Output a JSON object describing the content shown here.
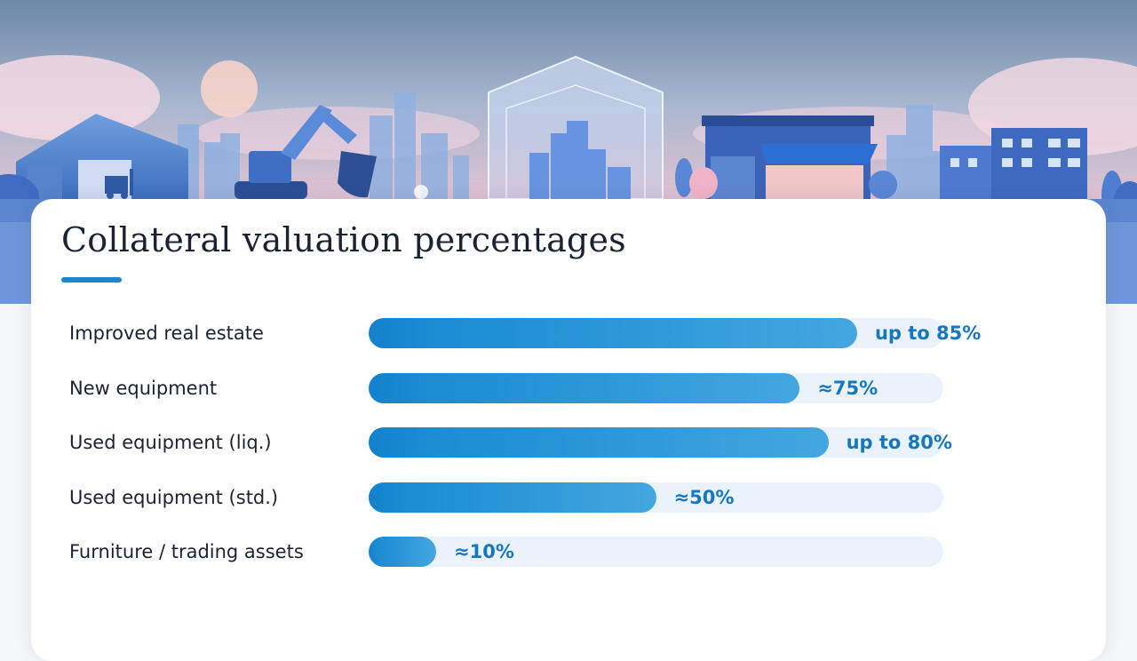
{
  "page": {
    "title": "Collateral valuation percentages"
  },
  "colors": {
    "accent": "#1a86cf",
    "bar": "#1b88d0",
    "track": "#eaf3fb",
    "value_text": "#1577bf",
    "title_text": "#1b2333"
  },
  "scene": {
    "depicts": [
      "warehouse-icon",
      "forklift-icon",
      "excavator-icon",
      "city-skyline-icon",
      "shield-icon",
      "storefront-icon",
      "apartment-building-icon",
      "tree-icon"
    ]
  },
  "chart_data": {
    "type": "bar",
    "orientation": "horizontal",
    "title": "Collateral valuation percentages",
    "xlabel": "",
    "ylabel": "",
    "xlim": [
      0,
      100
    ],
    "grid": false,
    "categories": [
      "Improved real estate",
      "New equipment",
      "Used equipment (liq.)",
      "Used equipment (std.)",
      "Furniture / trading assets"
    ],
    "values": [
      85,
      75,
      80,
      50,
      10
    ],
    "value_labels": [
      "up to 85%",
      "≈75%",
      "up to 80%",
      "≈50%",
      "≈10%"
    ]
  }
}
